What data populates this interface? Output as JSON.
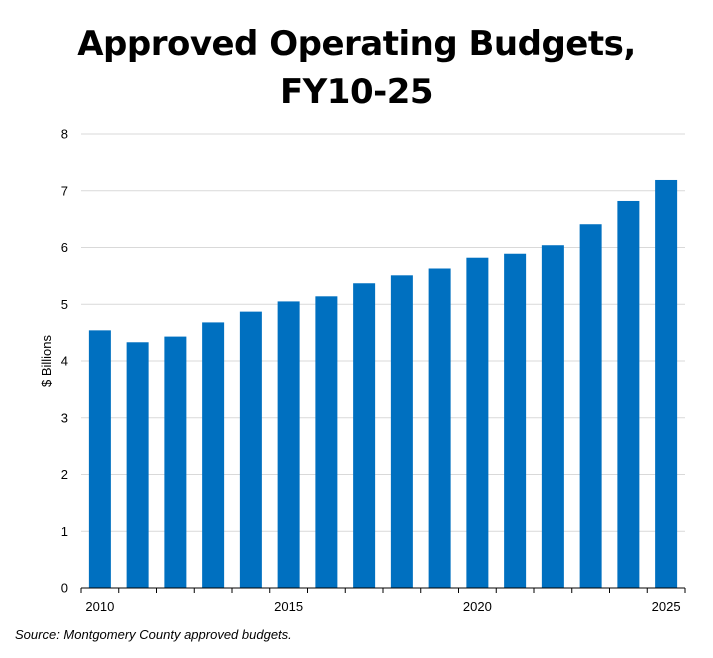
{
  "chart_data": {
    "type": "bar",
    "title_line1": "Approved Operating Budgets,",
    "title_line2": "FY10-25",
    "xlabel": "",
    "ylabel": "$ Billions",
    "ylim": [
      0,
      8
    ],
    "yticks": [
      0,
      1,
      2,
      3,
      4,
      5,
      6,
      7,
      8
    ],
    "grid": true,
    "legend": "none",
    "bar_color": "#0070C0",
    "categories": [
      "2010",
      "2011",
      "2012",
      "2013",
      "2014",
      "2015",
      "2016",
      "2017",
      "2018",
      "2019",
      "2020",
      "2021",
      "2022",
      "2023",
      "2024",
      "2025"
    ],
    "xtick_labels_shown": [
      "2010",
      "2015",
      "2020",
      "2025"
    ],
    "values": [
      4.54,
      4.33,
      4.43,
      4.68,
      4.87,
      5.05,
      5.14,
      5.37,
      5.51,
      5.63,
      5.82,
      5.89,
      6.04,
      6.41,
      6.82,
      7.19
    ]
  },
  "source": "Source: Montgomery County approved budgets."
}
